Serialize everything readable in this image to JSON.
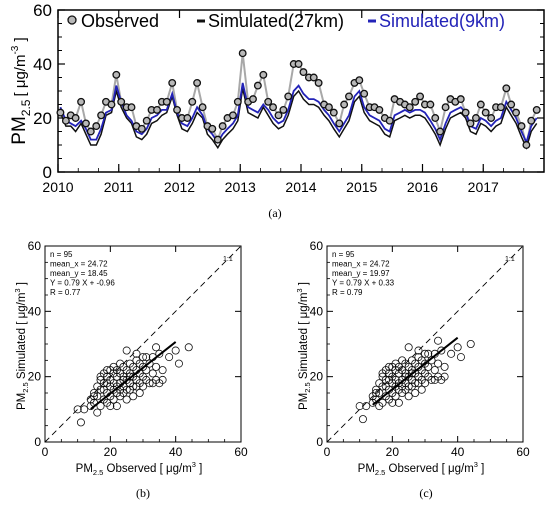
{
  "chart_data": [
    {
      "id": "a",
      "panel_label": "(a)",
      "type": "line",
      "ylabel": "PM",
      "ylabel_sub": "2.5",
      "ylabel_unit": "[ μg/m",
      "ylabel_unit_sup": "-3",
      "ylabel_unit_close": " ]",
      "ylim": [
        0,
        60
      ],
      "yticks": [
        0,
        20,
        40,
        60
      ],
      "xlim": [
        2010,
        2018
      ],
      "xticks": [
        2010,
        2011,
        2012,
        2013,
        2014,
        2015,
        2016,
        2017
      ],
      "legend": [
        "Observed",
        "Simulated(27km)",
        "Simulated(9km)"
      ],
      "series": [
        {
          "name": "Observed",
          "color": "#222222",
          "line_color": "#a8a8a8",
          "x": [
            2010.04,
            2010.13,
            2010.21,
            2010.29,
            2010.38,
            2010.46,
            2010.54,
            2010.63,
            2010.71,
            2010.79,
            2010.88,
            2010.96,
            2011.04,
            2011.13,
            2011.21,
            2011.29,
            2011.38,
            2011.46,
            2011.54,
            2011.63,
            2011.71,
            2011.79,
            2011.88,
            2011.96,
            2012.04,
            2012.13,
            2012.21,
            2012.29,
            2012.38,
            2012.46,
            2012.54,
            2012.63,
            2012.71,
            2012.79,
            2012.88,
            2012.96,
            2013.04,
            2013.13,
            2013.21,
            2013.29,
            2013.38,
            2013.46,
            2013.54,
            2013.63,
            2013.71,
            2013.79,
            2013.88,
            2013.96,
            2014.04,
            2014.13,
            2014.21,
            2014.29,
            2014.38,
            2014.46,
            2014.54,
            2014.63,
            2014.71,
            2014.79,
            2014.88,
            2014.96,
            2015.04,
            2015.13,
            2015.21,
            2015.29,
            2015.38,
            2015.46,
            2015.54,
            2015.63,
            2015.71,
            2015.79,
            2015.88,
            2015.96,
            2016.04,
            2016.13,
            2016.21,
            2016.29,
            2016.38,
            2016.46,
            2016.54,
            2016.63,
            2016.71,
            2016.79,
            2016.88,
            2016.96,
            2017.04,
            2017.13,
            2017.21,
            2017.29,
            2017.38,
            2017.46,
            2017.54,
            2017.63,
            2017.71,
            2017.79,
            2017.88
          ],
          "values": [
            22,
            19,
            21,
            20,
            26,
            18,
            15,
            17,
            21,
            26,
            25,
            36,
            26,
            24,
            24,
            17,
            16,
            19,
            23,
            23,
            26,
            26,
            33,
            23,
            20,
            20,
            26,
            33,
            24,
            17,
            16,
            12,
            17,
            20,
            21,
            26,
            44,
            26,
            27,
            32,
            36,
            26,
            24,
            21,
            23,
            28,
            40,
            40,
            37,
            35,
            35,
            33,
            25,
            24,
            22,
            18,
            25,
            28,
            33,
            34,
            29,
            24,
            24,
            23,
            20,
            19,
            27,
            26,
            25,
            24,
            26,
            28,
            25,
            25,
            20,
            15,
            24,
            27,
            26,
            27,
            22,
            18,
            20,
            25,
            22,
            20,
            24,
            24,
            31,
            25,
            22,
            17,
            10,
            19,
            23
          ]
        },
        {
          "name": "Simulated(27km)",
          "color": "#111111",
          "values": [
            22,
            17,
            17,
            15,
            18,
            14,
            10,
            10,
            14,
            21,
            22,
            30,
            24,
            20,
            18,
            13,
            12,
            14,
            18,
            19,
            21,
            22,
            28,
            21,
            16,
            15,
            18,
            22,
            20,
            14,
            12,
            9,
            12,
            14,
            16,
            19,
            31,
            22,
            21,
            20,
            24,
            21,
            18,
            16,
            17,
            21,
            28,
            30,
            27,
            25,
            25,
            24,
            21,
            19,
            16,
            13,
            16,
            19,
            26,
            28,
            22,
            19,
            18,
            17,
            14,
            13,
            19,
            20,
            21,
            20,
            21,
            21,
            20,
            17,
            14,
            10,
            16,
            20,
            21,
            22,
            20,
            15,
            14,
            18,
            17,
            15,
            17,
            18,
            24,
            21,
            18,
            13,
            9,
            15,
            18
          ]
        },
        {
          "name": "Simulated(9km)",
          "color": "#2323b8",
          "values": [
            24,
            19,
            18,
            17,
            19,
            16,
            12,
            12,
            16,
            22,
            23,
            32,
            26,
            21,
            19,
            15,
            14,
            16,
            20,
            21,
            23,
            23,
            29,
            22,
            18,
            17,
            20,
            24,
            21,
            16,
            14,
            11,
            14,
            16,
            18,
            21,
            33,
            24,
            23,
            22,
            25,
            23,
            20,
            18,
            19,
            23,
            30,
            32,
            29,
            27,
            27,
            26,
            23,
            21,
            18,
            15,
            18,
            21,
            28,
            30,
            24,
            21,
            20,
            19,
            16,
            15,
            21,
            22,
            23,
            22,
            23,
            23,
            22,
            19,
            16,
            12,
            18,
            22,
            23,
            24,
            22,
            17,
            16,
            20,
            19,
            17,
            19,
            20,
            26,
            23,
            20,
            15,
            11,
            17,
            20
          ]
        }
      ]
    },
    {
      "id": "b",
      "panel_label": "(b)",
      "type": "scatter",
      "xlabel": "PM",
      "xlabel_sub": "2.5",
      "xlabel_rest": " Observed [ μg/m",
      "xlabel_sup": "3",
      "xlabel_close": " ]",
      "ylabel": "PM",
      "ylabel_sub": "2.5",
      "ylabel_rest": " Simulated [ μg/m",
      "ylabel_sup": "3",
      "ylabel_close": " ]",
      "xlim": [
        0,
        60
      ],
      "ylim": [
        0,
        60
      ],
      "ticks": [
        0,
        20,
        40,
        60
      ],
      "stats": [
        "n = 95",
        "mean_x = 24.72",
        "mean_y = 18.45",
        "Y = 0.79 X + -0.96",
        "R = 0.77"
      ],
      "one_to_one_label": "1:1",
      "fit": {
        "slope": 0.79,
        "intercept": -0.96,
        "x_range": [
          14,
          40
        ]
      },
      "points": [
        [
          10,
          10
        ],
        [
          11,
          6
        ],
        [
          14,
          13
        ],
        [
          15,
          12
        ],
        [
          15,
          15
        ],
        [
          16,
          9
        ],
        [
          16,
          14
        ],
        [
          17,
          11
        ],
        [
          17,
          16
        ],
        [
          18,
          13
        ],
        [
          18,
          18
        ],
        [
          18,
          21
        ],
        [
          19,
          15
        ],
        [
          19,
          12
        ],
        [
          19,
          20
        ],
        [
          20,
          17
        ],
        [
          20,
          14
        ],
        [
          20,
          22
        ],
        [
          21,
          13
        ],
        [
          21,
          18
        ],
        [
          21,
          16
        ],
        [
          22,
          20
        ],
        [
          22,
          15
        ],
        [
          22,
          11
        ],
        [
          23,
          18
        ],
        [
          23,
          21
        ],
        [
          23,
          14
        ],
        [
          24,
          17
        ],
        [
          24,
          20
        ],
        [
          24,
          23
        ],
        [
          25,
          16
        ],
        [
          25,
          19
        ],
        [
          25,
          13
        ],
        [
          26,
          21
        ],
        [
          26,
          18
        ],
        [
          26,
          24
        ],
        [
          27,
          17
        ],
        [
          27,
          20
        ],
        [
          27,
          14
        ],
        [
          28,
          22
        ],
        [
          28,
          19
        ],
        [
          28,
          25
        ],
        [
          29,
          18
        ],
        [
          29,
          21
        ],
        [
          29,
          15
        ],
        [
          30,
          23
        ],
        [
          30,
          20
        ],
        [
          30,
          26
        ],
        [
          31,
          19
        ],
        [
          31,
          22
        ],
        [
          32,
          24
        ],
        [
          32,
          18
        ],
        [
          33,
          21
        ],
        [
          33,
          26
        ],
        [
          34,
          19
        ],
        [
          34,
          23
        ],
        [
          35,
          18
        ],
        [
          35,
          27
        ],
        [
          36,
          22
        ],
        [
          36,
          19
        ],
        [
          38,
          26
        ],
        [
          40,
          28
        ],
        [
          41,
          24
        ],
        [
          44,
          29
        ],
        [
          17,
          19
        ],
        [
          19,
          18
        ],
        [
          21,
          21
        ],
        [
          23,
          16
        ],
        [
          25,
          22
        ],
        [
          27,
          23
        ],
        [
          29,
          24
        ],
        [
          31,
          26
        ],
        [
          20,
          19
        ],
        [
          22,
          17
        ],
        [
          24,
          19
        ],
        [
          26,
          16
        ],
        [
          28,
          17
        ],
        [
          30,
          17
        ],
        [
          24,
          15
        ],
        [
          22,
          22
        ],
        [
          18,
          16
        ],
        [
          16,
          17
        ],
        [
          20,
          11
        ],
        [
          26,
          20
        ],
        [
          28,
          27
        ],
        [
          25,
          28
        ],
        [
          23,
          24
        ],
        [
          21,
          23
        ],
        [
          19,
          22
        ],
        [
          17,
          20
        ],
        [
          15,
          14
        ],
        [
          14,
          11
        ],
        [
          12,
          10
        ],
        [
          33,
          18
        ],
        [
          34,
          29
        ]
      ]
    },
    {
      "id": "c",
      "panel_label": "(c)",
      "type": "scatter",
      "xlabel": "PM",
      "xlabel_sub": "2.5",
      "xlabel_rest": " Observed [ μg/m",
      "xlabel_sup": "3",
      "xlabel_close": " ]",
      "ylabel": "PM",
      "ylabel_sub": "2.5",
      "ylabel_rest": " Simulated [ μg/m",
      "ylabel_sup": "3",
      "ylabel_close": " ]",
      "xlim": [
        0,
        60
      ],
      "ylim": [
        0,
        60
      ],
      "ticks": [
        0,
        20,
        40,
        60
      ],
      "stats": [
        "n = 95",
        "mean_x = 24.72",
        "mean_y = 19.97",
        "Y = 0.79 X + 0.33",
        "R = 0.79"
      ],
      "one_to_one_label": "1:1",
      "fit": {
        "slope": 0.79,
        "intercept": 0.33,
        "x_range": [
          14,
          40
        ]
      },
      "points": [
        [
          10,
          11
        ],
        [
          11,
          7
        ],
        [
          14,
          14
        ],
        [
          15,
          13
        ],
        [
          15,
          16
        ],
        [
          16,
          11
        ],
        [
          16,
          15
        ],
        [
          17,
          12
        ],
        [
          17,
          17
        ],
        [
          18,
          14
        ],
        [
          18,
          19
        ],
        [
          18,
          22
        ],
        [
          19,
          16
        ],
        [
          19,
          13
        ],
        [
          19,
          21
        ],
        [
          20,
          18
        ],
        [
          20,
          15
        ],
        [
          20,
          23
        ],
        [
          21,
          14
        ],
        [
          21,
          19
        ],
        [
          21,
          17
        ],
        [
          22,
          21
        ],
        [
          22,
          16
        ],
        [
          22,
          12
        ],
        [
          23,
          19
        ],
        [
          23,
          22
        ],
        [
          23,
          15
        ],
        [
          24,
          18
        ],
        [
          24,
          21
        ],
        [
          24,
          24
        ],
        [
          25,
          17
        ],
        [
          25,
          20
        ],
        [
          25,
          14
        ],
        [
          26,
          22
        ],
        [
          26,
          19
        ],
        [
          26,
          25
        ],
        [
          27,
          18
        ],
        [
          27,
          21
        ],
        [
          27,
          15
        ],
        [
          28,
          23
        ],
        [
          28,
          20
        ],
        [
          28,
          26
        ],
        [
          29,
          19
        ],
        [
          29,
          22
        ],
        [
          29,
          16
        ],
        [
          30,
          24
        ],
        [
          30,
          21
        ],
        [
          30,
          27
        ],
        [
          31,
          20
        ],
        [
          31,
          23
        ],
        [
          32,
          25
        ],
        [
          32,
          19
        ],
        [
          33,
          22
        ],
        [
          33,
          27
        ],
        [
          34,
          20
        ],
        [
          34,
          24
        ],
        [
          35,
          19
        ],
        [
          35,
          28
        ],
        [
          36,
          23
        ],
        [
          36,
          20
        ],
        [
          38,
          27
        ],
        [
          40,
          29
        ],
        [
          41,
          26
        ],
        [
          44,
          30
        ],
        [
          17,
          20
        ],
        [
          19,
          19
        ],
        [
          21,
          22
        ],
        [
          23,
          17
        ],
        [
          25,
          23
        ],
        [
          27,
          24
        ],
        [
          29,
          25
        ],
        [
          31,
          27
        ],
        [
          20,
          20
        ],
        [
          22,
          18
        ],
        [
          24,
          20
        ],
        [
          26,
          17
        ],
        [
          28,
          18
        ],
        [
          30,
          18
        ],
        [
          24,
          16
        ],
        [
          22,
          23
        ],
        [
          18,
          17
        ],
        [
          16,
          18
        ],
        [
          20,
          12
        ],
        [
          26,
          21
        ],
        [
          28,
          28
        ],
        [
          25,
          29
        ],
        [
          23,
          25
        ],
        [
          21,
          24
        ],
        [
          19,
          23
        ],
        [
          17,
          21
        ],
        [
          15,
          15
        ],
        [
          14,
          12
        ],
        [
          12,
          11
        ],
        [
          33,
          19
        ],
        [
          34,
          31
        ]
      ]
    }
  ]
}
